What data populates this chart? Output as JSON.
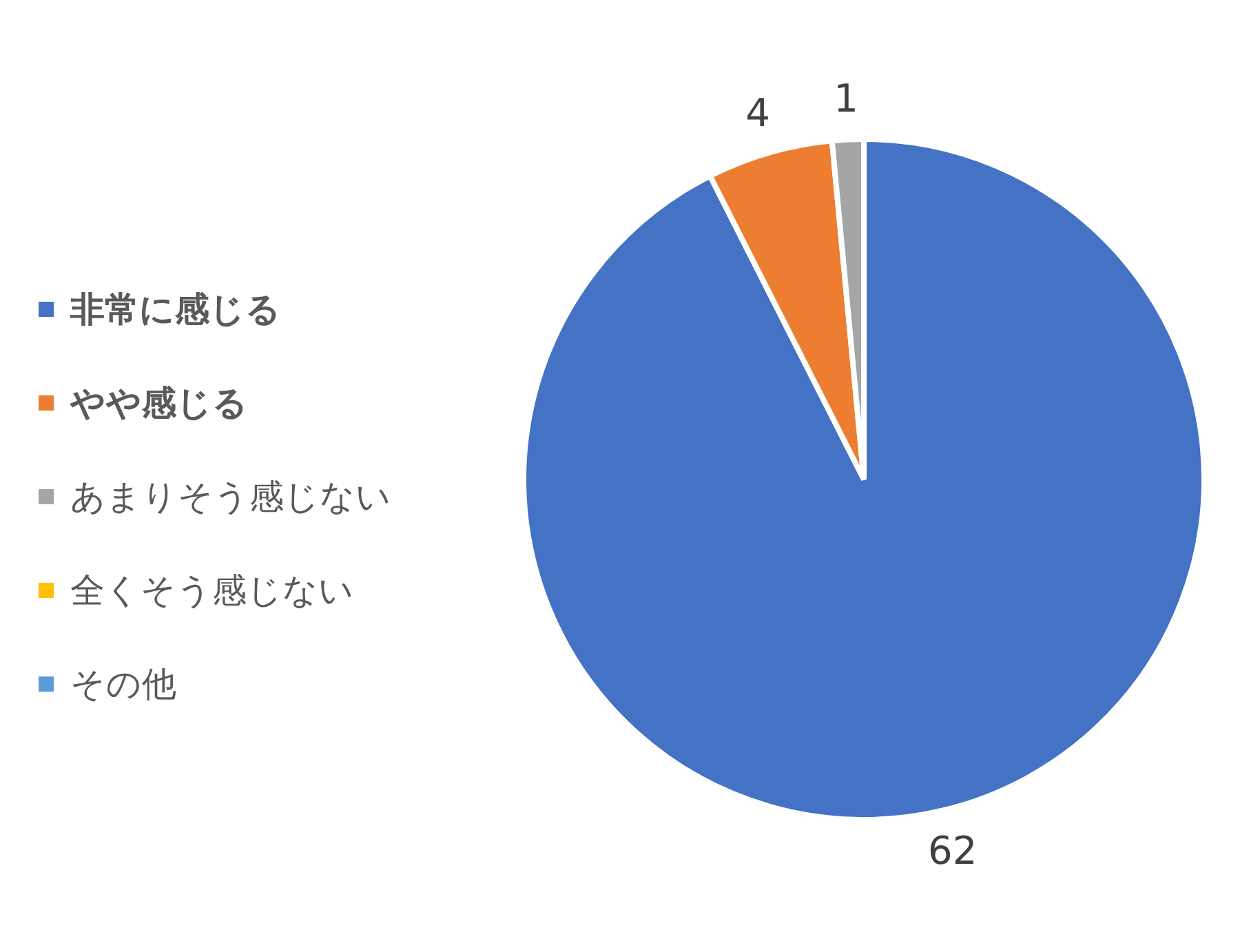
{
  "chart_data": {
    "type": "pie",
    "categories": [
      "非常に感じる",
      "やや感じる",
      "あまりそう感じない",
      "全くそう感じない",
      "その他"
    ],
    "values": [
      62,
      4,
      1,
      0,
      0
    ],
    "colors": [
      "#4472c4",
      "#ed7d31",
      "#a5a5a5",
      "#ffc000",
      "#5b9bd5"
    ],
    "value_labels": [
      "62",
      "4",
      "1",
      null,
      null
    ],
    "legend": "left"
  }
}
